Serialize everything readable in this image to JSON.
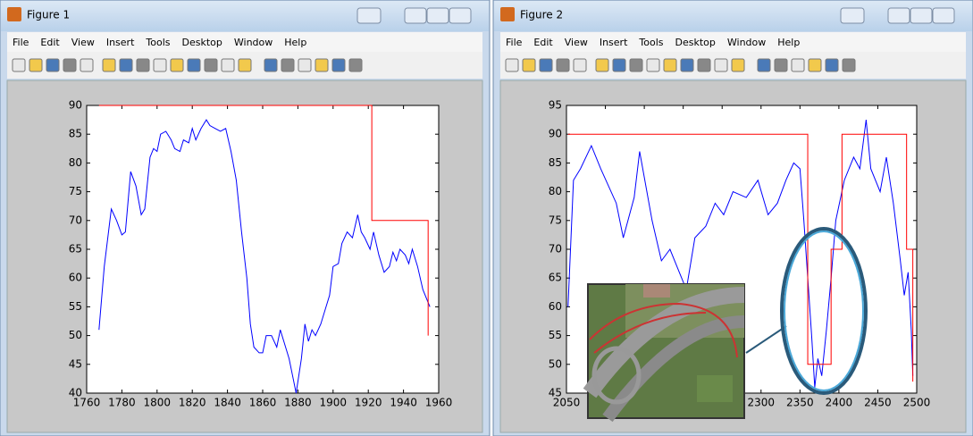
{
  "windows": [
    {
      "title": "Figure 1",
      "menu": [
        "File",
        "Edit",
        "View",
        "Insert",
        "Tools",
        "Desktop",
        "Window",
        "Help"
      ]
    },
    {
      "title": "Figure 2",
      "menu": [
        "File",
        "Edit",
        "View",
        "Insert",
        "Tools",
        "Desktop",
        "Window",
        "Help"
      ]
    }
  ],
  "chart_data": [
    {
      "type": "line",
      "xlim": [
        1760,
        1960
      ],
      "xticks": [
        1760,
        1780,
        1800,
        1820,
        1840,
        1860,
        1880,
        1900,
        1920,
        1940,
        1960
      ],
      "ylim": [
        40,
        90
      ],
      "yticks": [
        40,
        45,
        50,
        55,
        60,
        65,
        70,
        75,
        80,
        85,
        90
      ],
      "series": [
        {
          "color": "#0000ff",
          "x": [
            1767,
            1770,
            1774,
            1777,
            1780,
            1782,
            1785,
            1788,
            1791,
            1793,
            1796,
            1798,
            1800,
            1802,
            1805,
            1808,
            1810,
            1813,
            1815,
            1818,
            1820,
            1822,
            1825,
            1828,
            1830,
            1833,
            1836,
            1839,
            1842,
            1845,
            1848,
            1851,
            1853,
            1855,
            1858,
            1860,
            1862,
            1865,
            1868,
            1870,
            1872,
            1875,
            1877,
            1879,
            1882,
            1884,
            1886,
            1888,
            1890,
            1893,
            1896,
            1898,
            1900,
            1903,
            1905,
            1908,
            1911,
            1914,
            1916,
            1918,
            1921,
            1923,
            1926,
            1929,
            1932,
            1934,
            1936,
            1938,
            1941,
            1943,
            1945,
            1948,
            1951,
            1955
          ],
          "values": [
            51,
            62,
            72,
            70,
            67.5,
            68,
            78.5,
            76,
            71,
            72,
            81,
            82.5,
            82,
            85,
            85.5,
            84,
            82.5,
            82,
            84,
            83.5,
            86,
            84,
            86,
            87.5,
            86.5,
            86,
            85.5,
            86,
            82,
            77,
            68,
            60,
            52,
            48,
            47,
            47,
            50,
            50,
            48,
            51,
            49,
            46,
            43,
            40,
            46,
            52,
            49,
            51,
            50,
            52,
            55,
            57,
            62,
            62.5,
            66,
            68,
            67,
            71,
            68,
            67,
            65,
            68,
            64,
            61,
            62,
            64.5,
            63,
            65,
            64,
            62.5,
            65,
            62,
            58,
            55
          ]
        },
        {
          "color": "#ff0000",
          "x": [
            1767,
            1922,
            1922,
            1954,
            1954
          ],
          "values": [
            90,
            90,
            70,
            70,
            50
          ]
        }
      ]
    },
    {
      "type": "line",
      "xlim": [
        2050,
        2500
      ],
      "xticks": [
        2050,
        2100,
        2150,
        2200,
        2250,
        2300,
        2350,
        2400,
        2450,
        2500
      ],
      "ylim": [
        45,
        95
      ],
      "yticks": [
        45,
        50,
        55,
        60,
        65,
        70,
        75,
        80,
        85,
        90,
        95
      ],
      "series": [
        {
          "color": "#0000ff",
          "x": [
            2052,
            2059,
            2068,
            2082,
            2094,
            2114,
            2123,
            2137,
            2144,
            2160,
            2172,
            2183,
            2195,
            2204,
            2215,
            2229,
            2241,
            2252,
            2264,
            2281,
            2296,
            2309,
            2321,
            2332,
            2342,
            2350,
            2355,
            2360,
            2365,
            2369,
            2373,
            2378,
            2384,
            2390,
            2396,
            2407,
            2419,
            2427,
            2435,
            2441,
            2453,
            2461,
            2470,
            2479,
            2484,
            2489,
            2493,
            2495
          ],
          "values": [
            60,
            82,
            84,
            88,
            84,
            78,
            72,
            79,
            87,
            75,
            68,
            70,
            66,
            63,
            72,
            74,
            78,
            76,
            80,
            79,
            82,
            76,
            78,
            82,
            85,
            84,
            75,
            65,
            55,
            46,
            51,
            48,
            56,
            65,
            75,
            82,
            86,
            84,
            92.5,
            84,
            80,
            86,
            78,
            68,
            62,
            66,
            56,
            48
          ]
        },
        {
          "color": "#ff0000",
          "x": [
            2052,
            2360,
            2360,
            2390,
            2390,
            2404,
            2404,
            2487,
            2487,
            2495,
            2495
          ],
          "values": [
            90,
            90,
            50,
            50,
            70,
            70,
            90,
            90,
            70,
            70,
            47
          ]
        }
      ]
    }
  ]
}
